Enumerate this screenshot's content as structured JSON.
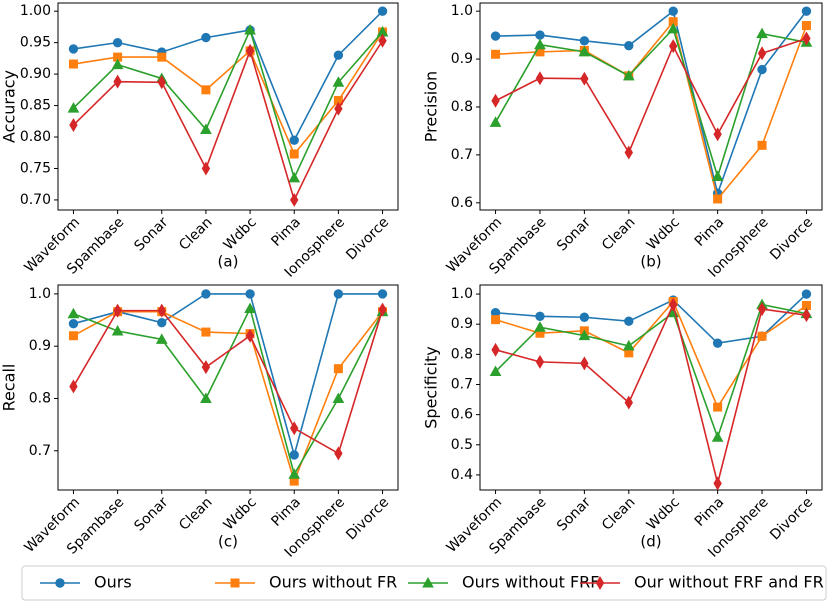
{
  "chart_data": [
    {
      "type": "line",
      "ylabel": "Accuracy",
      "caption": "(a)",
      "categories": [
        "Waveform",
        "Spambase",
        "Sonar",
        "Clean",
        "Wdbc",
        "Pima",
        "Ionosphere",
        "Divorce"
      ],
      "ylim": [
        0.684,
        1.013
      ],
      "yticks": [
        {
          "value": 0.7,
          "label": "0.70"
        },
        0.75,
        {
          "value": 0.8,
          "label": "0.80"
        },
        0.85,
        {
          "value": 0.9,
          "label": "0.90"
        },
        0.95,
        {
          "value": 1.0,
          "label": "1.00"
        }
      ],
      "series": [
        {
          "name": "Ours",
          "color": "#1f77b4",
          "marker": "o",
          "values": [
            0.94,
            0.95,
            0.935,
            0.958,
            0.97,
            0.795,
            0.93,
            1.0
          ]
        },
        {
          "name": "Ours without FR",
          "color": "#ff7f0e",
          "marker": "s",
          "values": [
            0.916,
            0.927,
            0.927,
            0.875,
            0.937,
            0.773,
            0.858,
            0.967
          ]
        },
        {
          "name": "Ours without FRF",
          "color": "#2ca02c",
          "marker": "^",
          "values": [
            0.846,
            0.915,
            0.893,
            0.812,
            0.97,
            0.735,
            0.887,
            0.967
          ]
        },
        {
          "name": "Our without FRF and FR",
          "color": "#d62728",
          "marker": "D",
          "values": [
            0.819,
            0.888,
            0.887,
            0.75,
            0.937,
            0.7,
            0.845,
            0.953
          ]
        }
      ]
    },
    {
      "type": "line",
      "ylabel": "Precision",
      "caption": "(b)",
      "categories": [
        "Waveform",
        "Spambase",
        "Sonar",
        "Clean",
        "Wdbc",
        "Pima",
        "Ionosphere",
        "Divorce"
      ],
      "ylim": [
        0.585,
        1.017
      ],
      "yticks": [
        {
          "value": 0.6,
          "label": "0.6"
        },
        0.7,
        0.8,
        0.9,
        {
          "value": 1.0,
          "label": "1.0"
        }
      ],
      "series": [
        {
          "color": "#1f77b4",
          "marker": "o",
          "values": [
            0.948,
            0.95,
            0.938,
            0.928,
            1.0,
            0.62,
            0.878,
            1.0
          ]
        },
        {
          "color": "#ff7f0e",
          "marker": "s",
          "values": [
            0.91,
            0.915,
            0.918,
            0.865,
            0.978,
            0.608,
            0.72,
            0.97
          ]
        },
        {
          "color": "#2ca02c",
          "marker": "^",
          "values": [
            0.768,
            0.93,
            0.915,
            0.865,
            0.963,
            0.655,
            0.953,
            0.935
          ]
        },
        {
          "color": "#d62728",
          "marker": "D",
          "values": [
            0.813,
            0.86,
            0.859,
            0.705,
            0.927,
            0.743,
            0.912,
            0.943
          ]
        }
      ]
    },
    {
      "type": "line",
      "ylabel": "Recall",
      "caption": "(c)",
      "categories": [
        "Waveform",
        "Spambase",
        "Sonar",
        "Clean",
        "Wdbc",
        "Pima",
        "Ionosphere",
        "Divorce"
      ],
      "ylim": [
        0.625,
        1.017
      ],
      "yticks": [
        0.7,
        0.8,
        0.9,
        {
          "value": 1.0,
          "label": "1.0"
        }
      ],
      "series": [
        {
          "color": "#1f77b4",
          "marker": "o",
          "values": [
            0.943,
            0.966,
            0.945,
            1.0,
            1.0,
            0.692,
            1.0,
            1.0
          ]
        },
        {
          "color": "#ff7f0e",
          "marker": "s",
          "values": [
            0.92,
            0.966,
            0.966,
            0.927,
            0.924,
            0.642,
            0.857,
            0.966
          ]
        },
        {
          "color": "#2ca02c",
          "marker": "^",
          "values": [
            0.962,
            0.929,
            0.913,
            0.8,
            0.972,
            0.655,
            0.8,
            0.966
          ]
        },
        {
          "color": "#d62728",
          "marker": "D",
          "values": [
            0.823,
            0.968,
            0.968,
            0.86,
            0.92,
            0.743,
            0.695,
            0.97
          ]
        }
      ]
    },
    {
      "type": "line",
      "ylabel": "Specificity",
      "caption": "(d)",
      "categories": [
        "Waveform",
        "Spambase",
        "Sonar",
        "Clean",
        "Wdbc",
        "Pima",
        "Ionosphere",
        "Divorce"
      ],
      "ylim": [
        0.35,
        1.03
      ],
      "yticks": [
        0.4,
        0.5,
        0.6,
        0.7,
        0.8,
        0.9,
        {
          "value": 1.0,
          "label": "1.0"
        }
      ],
      "series": [
        {
          "color": "#1f77b4",
          "marker": "o",
          "values": [
            0.938,
            0.926,
            0.923,
            0.91,
            0.98,
            0.837,
            0.86,
            1.0
          ]
        },
        {
          "color": "#ff7f0e",
          "marker": "s",
          "values": [
            0.915,
            0.87,
            0.878,
            0.805,
            0.975,
            0.625,
            0.86,
            0.962
          ]
        },
        {
          "color": "#2ca02c",
          "marker": "^",
          "values": [
            0.743,
            0.89,
            0.862,
            0.828,
            0.938,
            0.525,
            0.965,
            0.935
          ]
        },
        {
          "color": "#d62728",
          "marker": "D",
          "values": [
            0.815,
            0.775,
            0.77,
            0.64,
            0.965,
            0.372,
            0.95,
            0.93
          ]
        }
      ]
    }
  ]
}
